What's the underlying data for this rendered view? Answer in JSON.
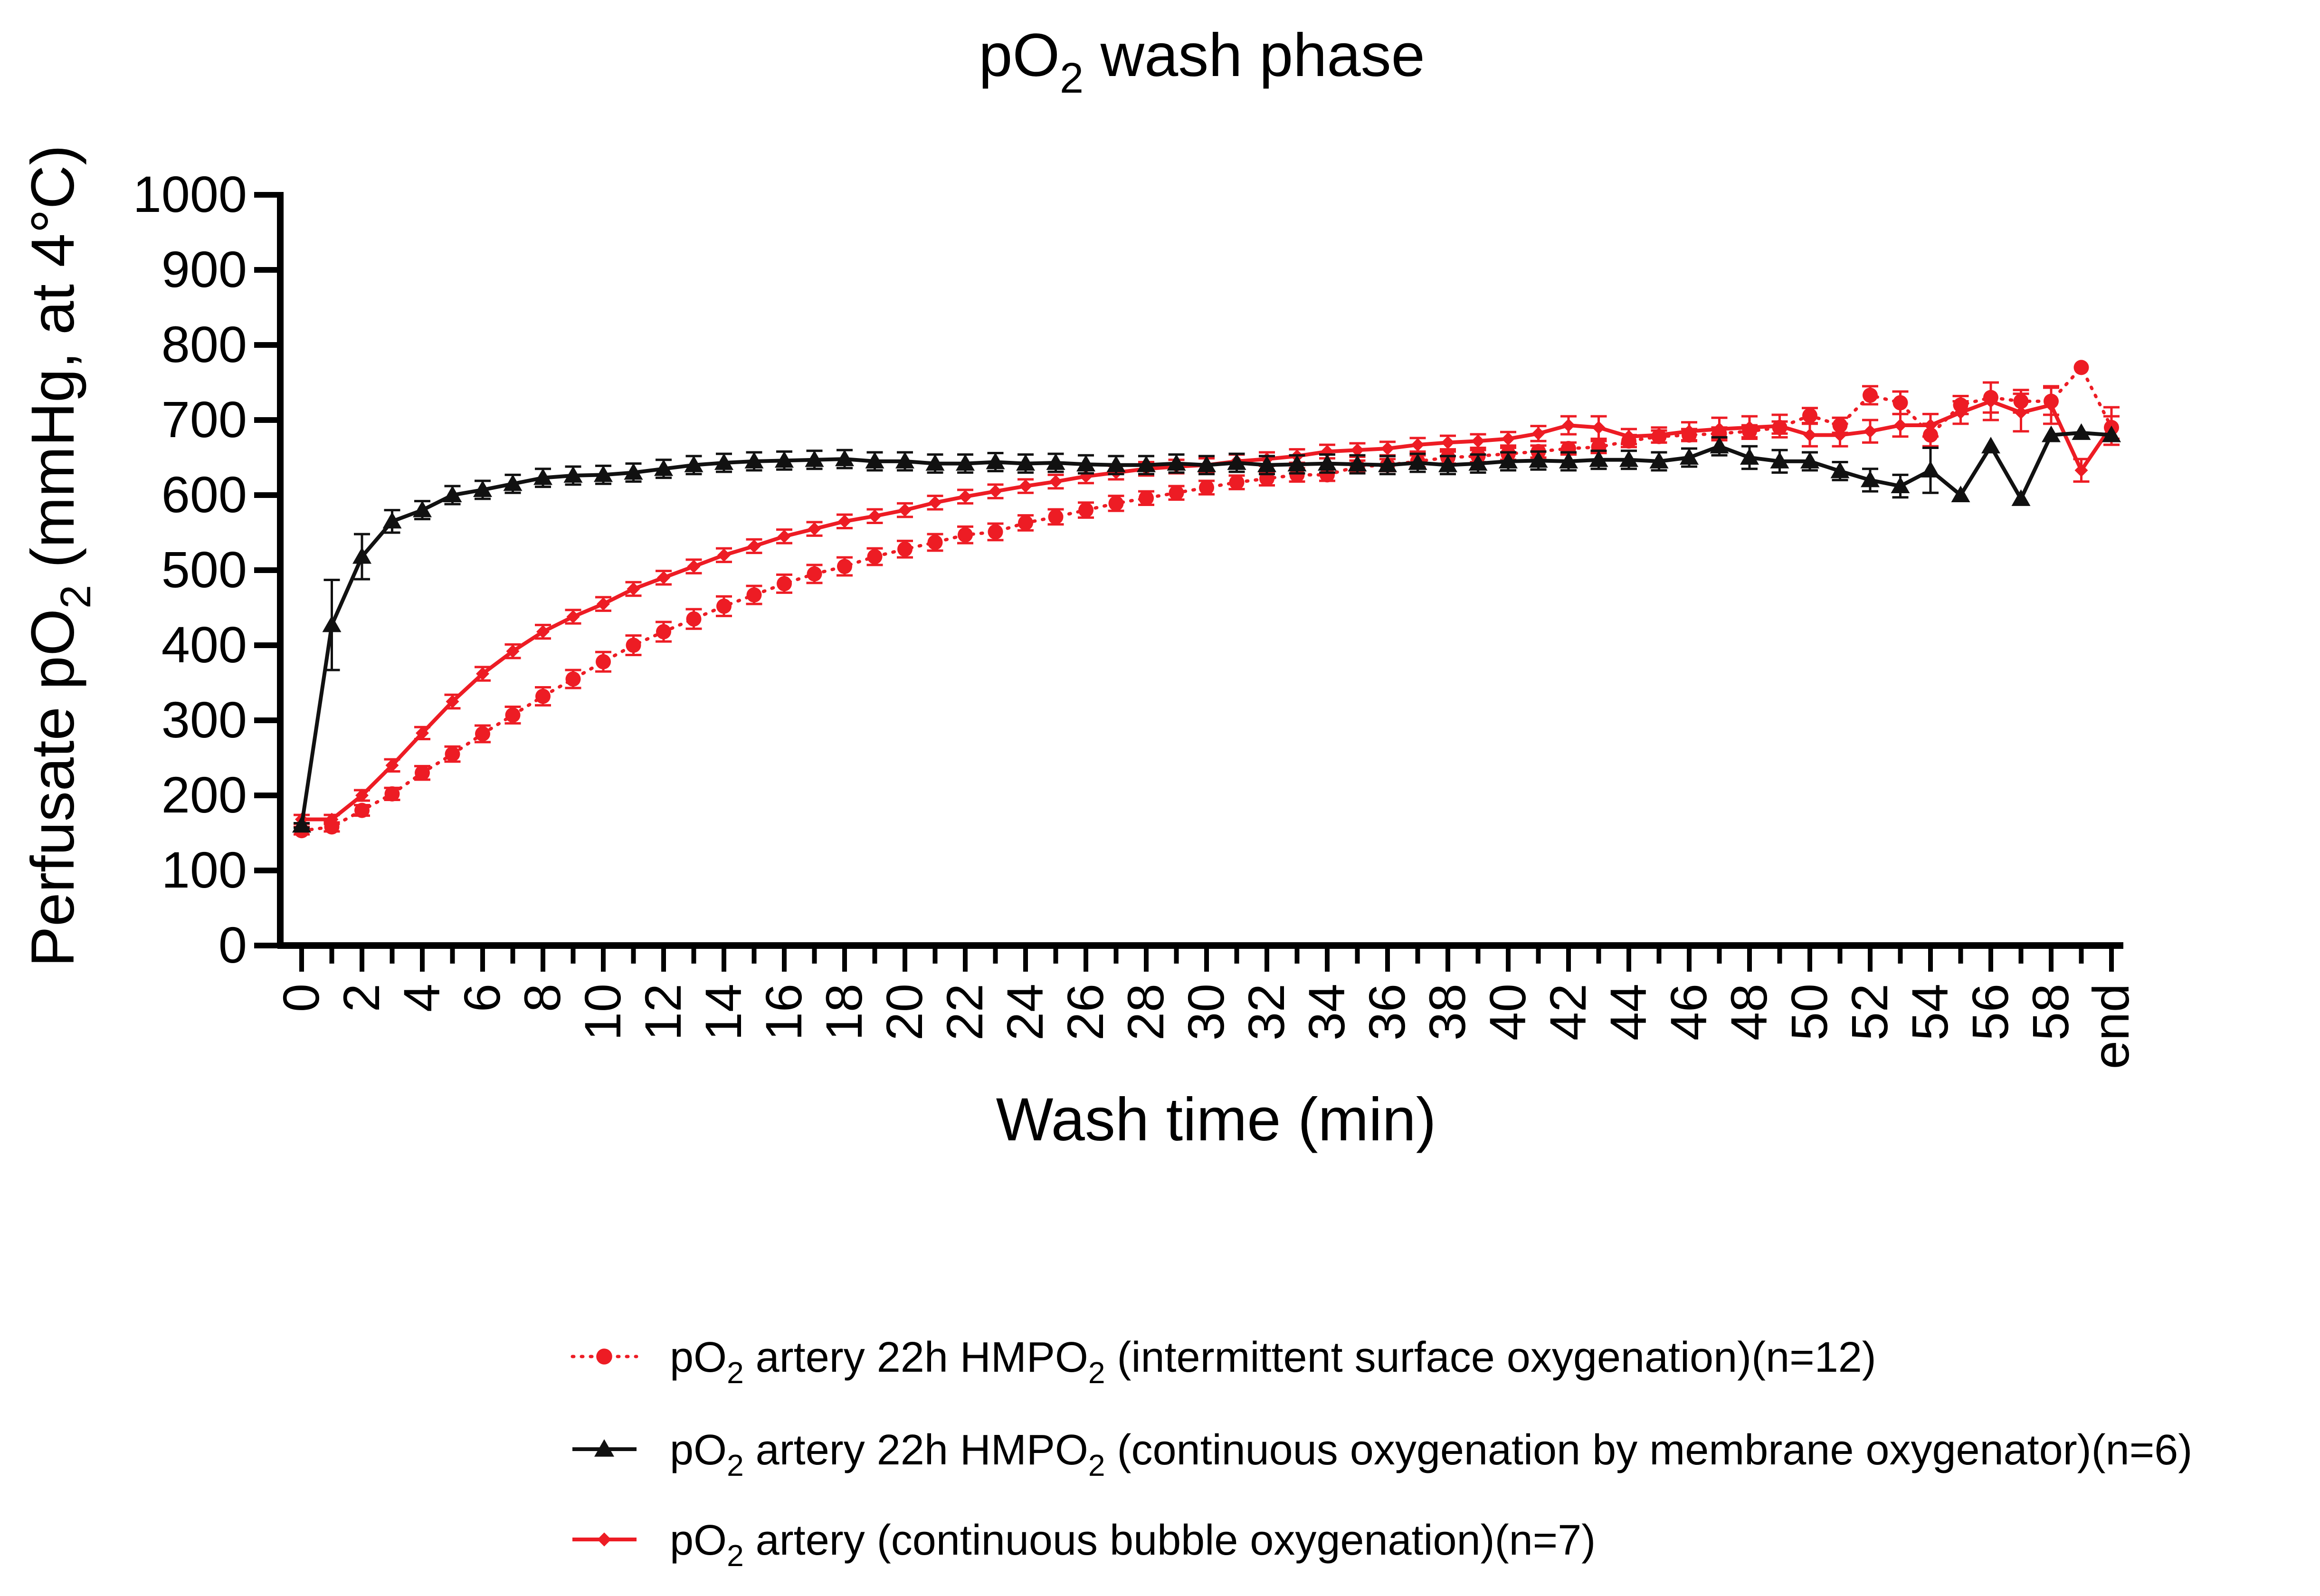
{
  "chart_data": {
    "type": "line",
    "title": {
      "main": "pO",
      "sub": "2",
      "rest": " wash phase"
    },
    "xlabel": "Wash time (min)",
    "ylabel": {
      "main": "Perfusate pO",
      "sub": "2",
      "rest": " (mmHg, at 4°C)"
    },
    "ylim": [
      0,
      1000
    ],
    "yticks": [
      0,
      100,
      200,
      300,
      400,
      500,
      600,
      700,
      800,
      900,
      1000
    ],
    "ytick_labels": [
      "0",
      "100",
      "200",
      "300",
      "400",
      "500",
      "600",
      "700",
      "800",
      "900",
      "1000"
    ],
    "x_positions": 61,
    "xtick_labels": [
      "0",
      "2",
      "4",
      "6",
      "8",
      "10",
      "12",
      "14",
      "16",
      "18",
      "20",
      "22",
      "24",
      "26",
      "28",
      "30",
      "32",
      "34",
      "36",
      "38",
      "40",
      "42",
      "44",
      "46",
      "48",
      "50",
      "52",
      "54",
      "56",
      "58",
      "end"
    ],
    "xtick_positions": [
      0,
      2,
      4,
      6,
      8,
      10,
      12,
      14,
      16,
      18,
      20,
      22,
      24,
      26,
      28,
      30,
      32,
      34,
      36,
      38,
      40,
      42,
      44,
      46,
      48,
      50,
      52,
      54,
      56,
      58,
      60
    ],
    "series": [
      {
        "name": "intermittent",
        "legend": [
          {
            "t": "pO",
            "sub": false
          },
          {
            "t": "2",
            "sub": true
          },
          {
            "t": " artery 22h HMPO",
            "sub": false
          },
          {
            "t": "2",
            "sub": true
          },
          {
            "t": " (intermittent surface oxygenation)(n=12)",
            "sub": false
          }
        ],
        "color": "#ed1c24",
        "marker": "circle",
        "line": "dotted",
        "x": [
          0,
          1,
          2,
          3,
          4,
          5,
          6,
          7,
          8,
          9,
          10,
          11,
          12,
          13,
          14,
          15,
          16,
          17,
          18,
          19,
          20,
          21,
          22,
          23,
          24,
          25,
          26,
          27,
          28,
          29,
          30,
          31,
          32,
          33,
          34,
          35,
          36,
          37,
          38,
          39,
          40,
          41,
          42,
          43,
          44,
          45,
          46,
          47,
          48,
          49,
          50,
          51,
          52,
          53,
          54,
          55,
          56,
          57,
          58,
          59,
          60
        ],
        "values": [
          153,
          158,
          180,
          202,
          230,
          255,
          282,
          307,
          332,
          355,
          378,
          400,
          418,
          435,
          452,
          467,
          482,
          495,
          505,
          518,
          528,
          537,
          547,
          551,
          563,
          571,
          580,
          589,
          596,
          603,
          610,
          617,
          622,
          627,
          627,
          638,
          640,
          645,
          650,
          652,
          655,
          658,
          662,
          664,
          672,
          678,
          680,
          682,
          685,
          690,
          706,
          693,
          733,
          723,
          680,
          720,
          730,
          725,
          725,
          770,
          690
        ],
        "errors": [
          5,
          6,
          7,
          8,
          9,
          10,
          11,
          11,
          12,
          12,
          13,
          13,
          13,
          13,
          13,
          12,
          12,
          12,
          12,
          11,
          11,
          11,
          11,
          11,
          10,
          10,
          10,
          10,
          9,
          9,
          9,
          9,
          9,
          9,
          8,
          8,
          8,
          8,
          8,
          8,
          8,
          8,
          8,
          8,
          8,
          8,
          8,
          8,
          8,
          8,
          10,
          10,
          12,
          15,
          15,
          12,
          20,
          15,
          18,
          0,
          15
        ]
      },
      {
        "name": "membrane",
        "legend": [
          {
            "t": "pO",
            "sub": false
          },
          {
            "t": "2",
            "sub": true
          },
          {
            "t": " artery 22h HMPO",
            "sub": false
          },
          {
            "t": "2",
            "sub": true
          },
          {
            "t": " (continuous oxygenation by membrane oxygenator)(n=6)",
            "sub": false
          }
        ],
        "color": "#111111",
        "marker": "triangle",
        "line": "solid",
        "x": [
          0,
          1,
          2,
          3,
          4,
          5,
          6,
          7,
          8,
          9,
          10,
          11,
          12,
          13,
          14,
          15,
          16,
          17,
          18,
          19,
          20,
          21,
          22,
          23,
          24,
          25,
          26,
          27,
          28,
          29,
          30,
          31,
          32,
          33,
          34,
          35,
          36,
          37,
          38,
          39,
          40,
          41,
          42,
          43,
          44,
          45,
          46,
          47,
          48,
          49,
          50,
          51,
          52,
          53,
          54,
          55,
          56,
          57,
          58,
          59,
          60
        ],
        "values": [
          160,
          427,
          518,
          565,
          580,
          600,
          607,
          615,
          623,
          626,
          627,
          630,
          635,
          640,
          643,
          645,
          646,
          647,
          648,
          645,
          645,
          642,
          642,
          644,
          642,
          643,
          641,
          640,
          640,
          642,
          640,
          643,
          640,
          641,
          642,
          641,
          640,
          643,
          640,
          642,
          645,
          646,
          645,
          647,
          647,
          645,
          650,
          665,
          650,
          645,
          645,
          632,
          620,
          612,
          633,
          600,
          665,
          595,
          680,
          683,
          680
        ],
        "errors": [
          3,
          60,
          30,
          15,
          12,
          12,
          12,
          12,
          12,
          12,
          12,
          12,
          12,
          12,
          12,
          12,
          12,
          12,
          12,
          12,
          12,
          12,
          12,
          12,
          12,
          12,
          12,
          12,
          12,
          12,
          12,
          12,
          12,
          12,
          12,
          12,
          12,
          12,
          12,
          12,
          12,
          12,
          12,
          12,
          12,
          12,
          12,
          12,
          15,
          15,
          12,
          12,
          15,
          15,
          30,
          0,
          0,
          0,
          0,
          0,
          0
        ]
      },
      {
        "name": "bubble",
        "legend": [
          {
            "t": "pO",
            "sub": false
          },
          {
            "t": "2",
            "sub": true
          },
          {
            "t": " artery (continuous bubble oxygenation)(n=7)",
            "sub": false
          }
        ],
        "color": "#ed1c24",
        "marker": "diamond",
        "line": "solid",
        "x": [
          0,
          1,
          2,
          3,
          4,
          5,
          6,
          7,
          8,
          9,
          10,
          11,
          12,
          13,
          14,
          15,
          16,
          17,
          18,
          19,
          20,
          21,
          22,
          23,
          24,
          25,
          26,
          27,
          28,
          29,
          30,
          31,
          32,
          33,
          34,
          35,
          36,
          37,
          38,
          39,
          40,
          41,
          42,
          43,
          44,
          45,
          46,
          47,
          48,
          49,
          50,
          51,
          52,
          53,
          54,
          55,
          56,
          57,
          58,
          59,
          60
        ],
        "values": [
          168,
          168,
          200,
          240,
          283,
          325,
          362,
          392,
          418,
          438,
          455,
          475,
          490,
          505,
          520,
          532,
          545,
          555,
          565,
          572,
          580,
          590,
          598,
          605,
          612,
          618,
          625,
          630,
          635,
          638,
          640,
          645,
          648,
          652,
          658,
          660,
          662,
          667,
          670,
          672,
          675,
          682,
          693,
          690,
          678,
          680,
          685,
          688,
          690,
          692,
          680,
          680,
          685,
          693,
          693,
          710,
          725,
          710,
          720,
          633,
          692
        ],
        "errors": [
          6,
          6,
          7,
          8,
          8,
          9,
          9,
          9,
          9,
          9,
          9,
          9,
          9,
          9,
          9,
          9,
          9,
          9,
          9,
          9,
          9,
          9,
          9,
          9,
          9,
          9,
          9,
          9,
          9,
          9,
          9,
          9,
          9,
          9,
          9,
          9,
          9,
          9,
          9,
          9,
          9,
          10,
          12,
          15,
          10,
          10,
          12,
          15,
          15,
          15,
          15,
          15,
          15,
          15,
          15,
          15,
          25,
          25,
          25,
          15,
          25
        ]
      }
    ]
  }
}
